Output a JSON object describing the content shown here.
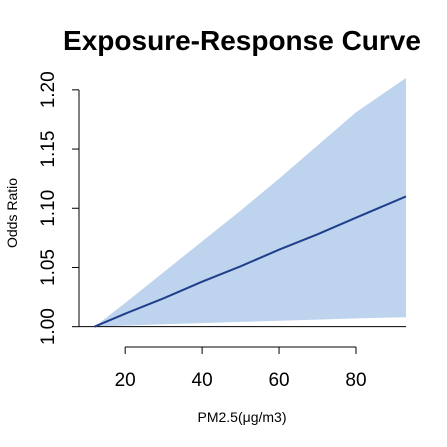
{
  "chart_data": {
    "type": "area",
    "title": "Exposure-Response Curve",
    "xlabel": "PM2.5(μg/m3)",
    "ylabel": "Odds Ratio",
    "xlim": [
      8,
      93
    ],
    "ylim": [
      0.982,
      1.21
    ],
    "x_ticks": [
      20,
      40,
      60,
      80
    ],
    "y_ticks": [
      1.0,
      1.05,
      1.1,
      1.15,
      1.2
    ],
    "x_tick_labels": [
      "20",
      "40",
      "60",
      "80"
    ],
    "y_tick_labels": [
      "1.00",
      "1.05",
      "1.10",
      "1.15",
      "1.20"
    ],
    "reference_line": 1.0,
    "series": [
      {
        "x": [
          12,
          20,
          30,
          40,
          50,
          60,
          70,
          80,
          93
        ],
        "estimate": [
          1.0,
          1.011,
          1.024,
          1.038,
          1.051,
          1.065,
          1.078,
          1.092,
          1.11
        ],
        "lower": [
          1.0,
          1.001,
          1.002,
          1.003,
          1.004,
          1.005,
          1.006,
          1.007,
          1.008
        ],
        "upper": [
          1.0,
          1.02,
          1.046,
          1.072,
          1.098,
          1.125,
          1.153,
          1.181,
          1.21
        ]
      }
    ],
    "colors": {
      "line": "#1f3f8c",
      "band": "#bdd3ee",
      "axis": "#000000"
    }
  }
}
